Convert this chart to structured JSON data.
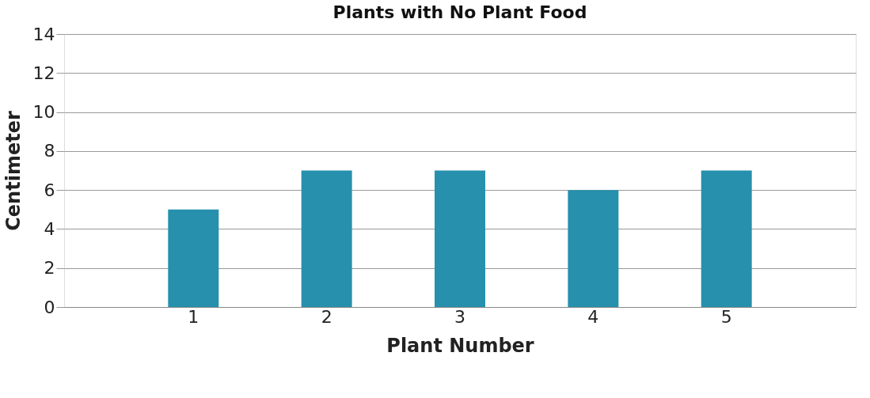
{
  "chart_data": {
    "type": "bar",
    "title": "Plants with No Plant Food",
    "xlabel": "Plant Number",
    "ylabel": "Centimeter",
    "categories": [
      "1",
      "2",
      "3",
      "4",
      "5"
    ],
    "values": [
      5,
      7,
      7,
      6,
      7
    ],
    "color": "#2690ad",
    "ylim": [
      0,
      14
    ],
    "yticks": [
      0,
      2,
      4,
      6,
      8,
      10,
      12,
      14
    ],
    "grid": "y"
  }
}
